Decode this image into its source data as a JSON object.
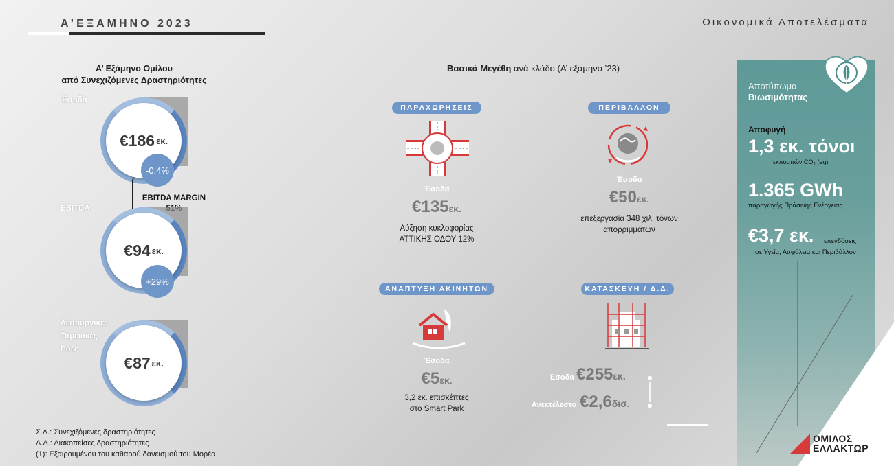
{
  "header": {
    "title": "Α’ΕΞΑΜΗΝΟ 2023",
    "section": "Οικονομικά Αποτελέσματα"
  },
  "left": {
    "title_line1": "Α’ Εξάμηνο Ομίλου",
    "title_line2": "από Συνεχιζόμενες Δραστηριότητες",
    "revenue": {
      "label": "Έσοδα",
      "value": "€186",
      "unit": "εκ.",
      "change": "-0,4%"
    },
    "ebitda": {
      "label": "EBITDA",
      "value": "€94",
      "unit": "εκ.",
      "change": "+29%"
    },
    "margin": {
      "label": "EBITDA MARGIN",
      "value": "51%"
    },
    "cashflow": {
      "label_l1": "Λειτουργικές",
      "label_l2": "Ταμειακές",
      "label_l3": "Ροές",
      "value": "€87",
      "unit": "εκ."
    }
  },
  "middle": {
    "title_bold": "Βασικά Μεγέθη",
    "title_rest": " ανά κλάδο (Α’ εξάμηνο ’23)",
    "concessions": {
      "pill": "ΠΑΡΑΧΩΡΗΣΕΙΣ",
      "label": "Έσοδα",
      "value": "€135",
      "unit": "εκ.",
      "desc_l1": "Αύξηση κυκλοφορίας",
      "desc_l2": "ΑΤΤΙΚΗΣ ΟΔΟΥ 12%"
    },
    "environment": {
      "pill": "ΠΕΡΙΒΑΛΛΟΝ",
      "label": "Έσοδα",
      "value": "€50",
      "unit": "εκ.",
      "desc_l1": "επεξεργασία 348 χιλ. τόνων",
      "desc_l2": "απορριμμάτων"
    },
    "realestate": {
      "pill": "ΑΝΑΠΤΥΞΗ ΑΚΙΝΗΤΩΝ",
      "label": "Έσοδα",
      "value": "€5",
      "unit": "εκ.",
      "desc_l1": "3,2 εκ. επισκέπτες",
      "desc_l2": "στο Smart Park"
    },
    "construction": {
      "pill": "ΚΑΤΑΣΚΕΥΗ / Δ.Δ.",
      "rev_label": "Έσοδα",
      "rev_value": "€255",
      "rev_unit": "εκ.",
      "backlog_label": "Ανεκτέλεστο",
      "backlog_value": "€2,6",
      "backlog_unit": "δισ."
    }
  },
  "panel": {
    "title_l1": "Αποτύπωμα",
    "title_l2": "Βιωσιμότητας",
    "avoid_label": "Αποφυγή",
    "co2_value": "1,3 εκ. τόνοι",
    "co2_desc": "εκπομπών CO₂ (eq)",
    "gwh_value": "1.365 GWh",
    "gwh_desc": "παραγωγής Πράσινης Ενέργειας",
    "invest_value": "€3,7 εκ.",
    "invest_desc_l1": "επενδύσεις",
    "invest_desc_l2": "σε Υγεία, Ασφάλεια και Περιβάλλον"
  },
  "footnotes": {
    "l1": "Σ.Δ.: Συνεχιζόμενες δραστηριότητες",
    "l2": "Δ.Δ.: Διακοπείσες δραστηριότητες",
    "l3": "(1): Εξαιρουμένου του καθαρού δανεισμού του Μορέα"
  },
  "logo": {
    "l1": "ΟΜΙΛΟΣ",
    "l2": "ΕΛΛΑΚΤΩΡ"
  },
  "colors": {
    "accent_blue": "#6f96c9",
    "teal": "#5e9a98",
    "red": "#d73a3a"
  }
}
